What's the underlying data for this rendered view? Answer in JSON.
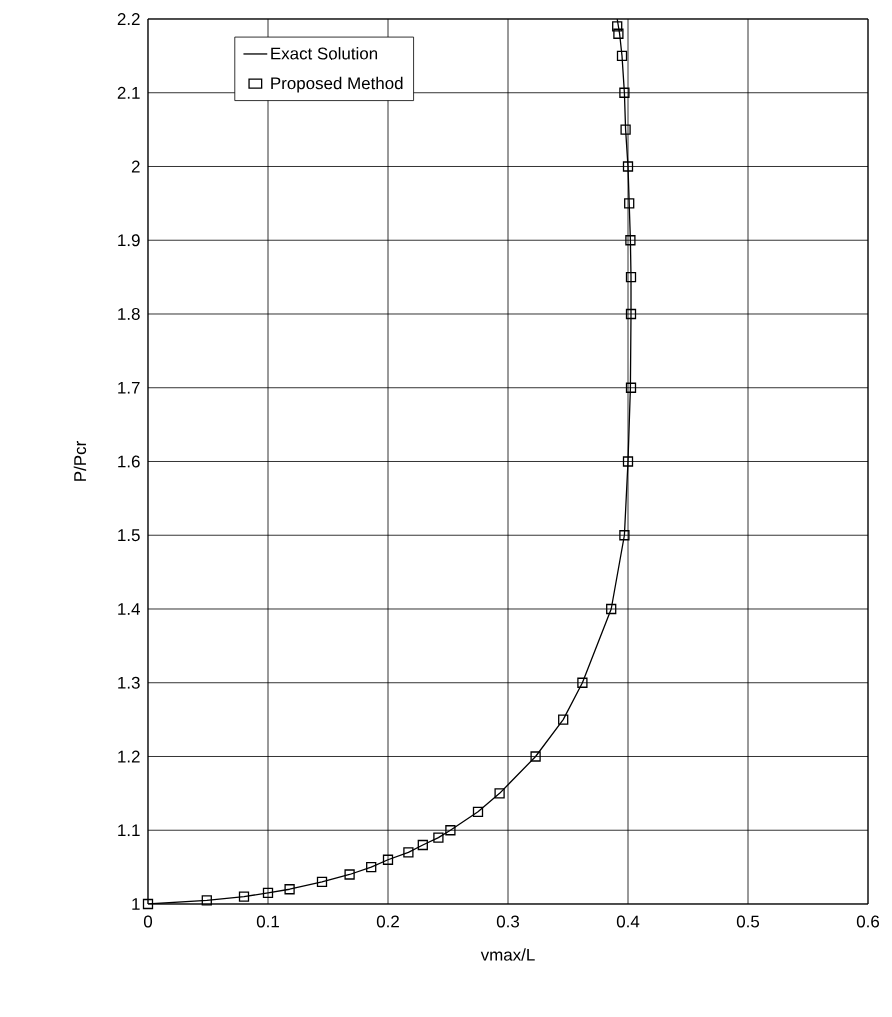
{
  "chart_data": {
    "type": "line",
    "xlabel": "vmax/L",
    "ylabel": "P/Pcr",
    "xlim": [
      0,
      0.6
    ],
    "ylim": [
      1,
      2.2
    ],
    "xticks": [
      0,
      0.1,
      0.2,
      0.3,
      0.4,
      0.5,
      0.6
    ],
    "yticks": [
      1,
      1.1,
      1.2,
      1.3,
      1.4,
      1.5,
      1.6,
      1.7,
      1.8,
      1.9,
      2,
      2.1,
      2.2
    ],
    "grid": true,
    "legend": "top left",
    "series": [
      {
        "name": "Exact Solution",
        "color": "#000000",
        "marker": "none",
        "line_style": "solid",
        "x": [
          0,
          0.049,
          0.08,
          0.1,
          0.118,
          0.145,
          0.168,
          0.186,
          0.2,
          0.217,
          0.229,
          0.242,
          0.252,
          0.275,
          0.293,
          0.323,
          0.346,
          0.362,
          0.386,
          0.397,
          0.4,
          0.402,
          0.4025,
          0.4025,
          0.402,
          0.401,
          0.4,
          0.398,
          0.397,
          0.395,
          0.393,
          0.391
        ],
        "values": [
          1,
          1.005,
          1.01,
          1.015,
          1.02,
          1.03,
          1.04,
          1.05,
          1.06,
          1.07,
          1.08,
          1.09,
          1.1,
          1.125,
          1.15,
          1.2,
          1.25,
          1.3,
          1.4,
          1.5,
          1.6,
          1.7,
          1.8,
          1.85,
          1.9,
          1.95,
          2,
          2.05,
          2.1,
          2.15,
          2.18,
          2.2
        ]
      },
      {
        "name": "Proposed Method",
        "type": "scatter",
        "color": "#000000",
        "marker": "square",
        "x": [
          0,
          0.049,
          0.08,
          0.1,
          0.118,
          0.145,
          0.168,
          0.186,
          0.2,
          0.217,
          0.229,
          0.242,
          0.252,
          0.275,
          0.293,
          0.323,
          0.346,
          0.362,
          0.386,
          0.397,
          0.4,
          0.4025,
          0.4025,
          0.4025,
          0.402,
          0.401,
          0.4,
          0.398,
          0.397,
          0.395,
          0.392,
          0.391
        ],
        "values": [
          1,
          1.005,
          1.01,
          1.015,
          1.02,
          1.03,
          1.04,
          1.05,
          1.06,
          1.07,
          1.08,
          1.09,
          1.1,
          1.125,
          1.15,
          1.2,
          1.25,
          1.3,
          1.4,
          1.5,
          1.6,
          1.7,
          1.8,
          1.85,
          1.9,
          1.95,
          2,
          2.05,
          2.1,
          2.15,
          2.18,
          2.19
        ]
      }
    ]
  }
}
